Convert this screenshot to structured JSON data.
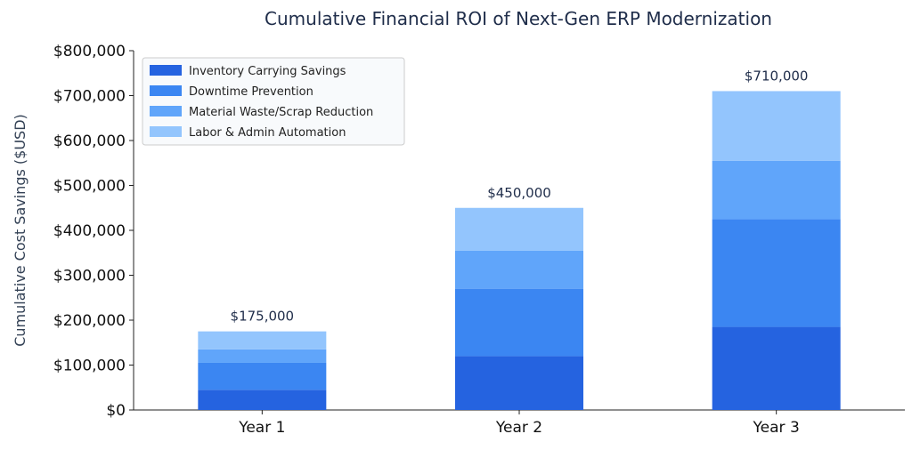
{
  "chart_data": {
    "type": "bar",
    "stacked": true,
    "title": "Cumulative Financial ROI of Next-Gen ERP Modernization",
    "xlabel": "",
    "ylabel": "Cumulative Cost Savings ($USD)",
    "ylim": [
      0,
      800000
    ],
    "yticks": [
      0,
      100000,
      200000,
      300000,
      400000,
      500000,
      600000,
      700000,
      800000
    ],
    "ytick_labels": [
      "$0",
      "$100,000",
      "$200,000",
      "$300,000",
      "$400,000",
      "$500,000",
      "$600,000",
      "$700,000",
      "$800,000"
    ],
    "categories": [
      "Year 1",
      "Year 2",
      "Year 3"
    ],
    "series": [
      {
        "name": "Inventory Carrying Savings",
        "values": [
          45000,
          120000,
          185000
        ],
        "color": "#2563e0"
      },
      {
        "name": "Downtime Prevention",
        "values": [
          60000,
          150000,
          240000
        ],
        "color": "#3b86f2"
      },
      {
        "name": "Material Waste/Scrap Reduction",
        "values": [
          30000,
          85000,
          130000
        ],
        "color": "#60a5fa"
      },
      {
        "name": "Labor & Admin Automation",
        "values": [
          40000,
          95000,
          155000
        ],
        "color": "#93c5fd"
      }
    ],
    "totals": [
      "$175,000",
      "$450,000",
      "$710,000"
    ],
    "legend_position": "top-left",
    "grid": false
  }
}
